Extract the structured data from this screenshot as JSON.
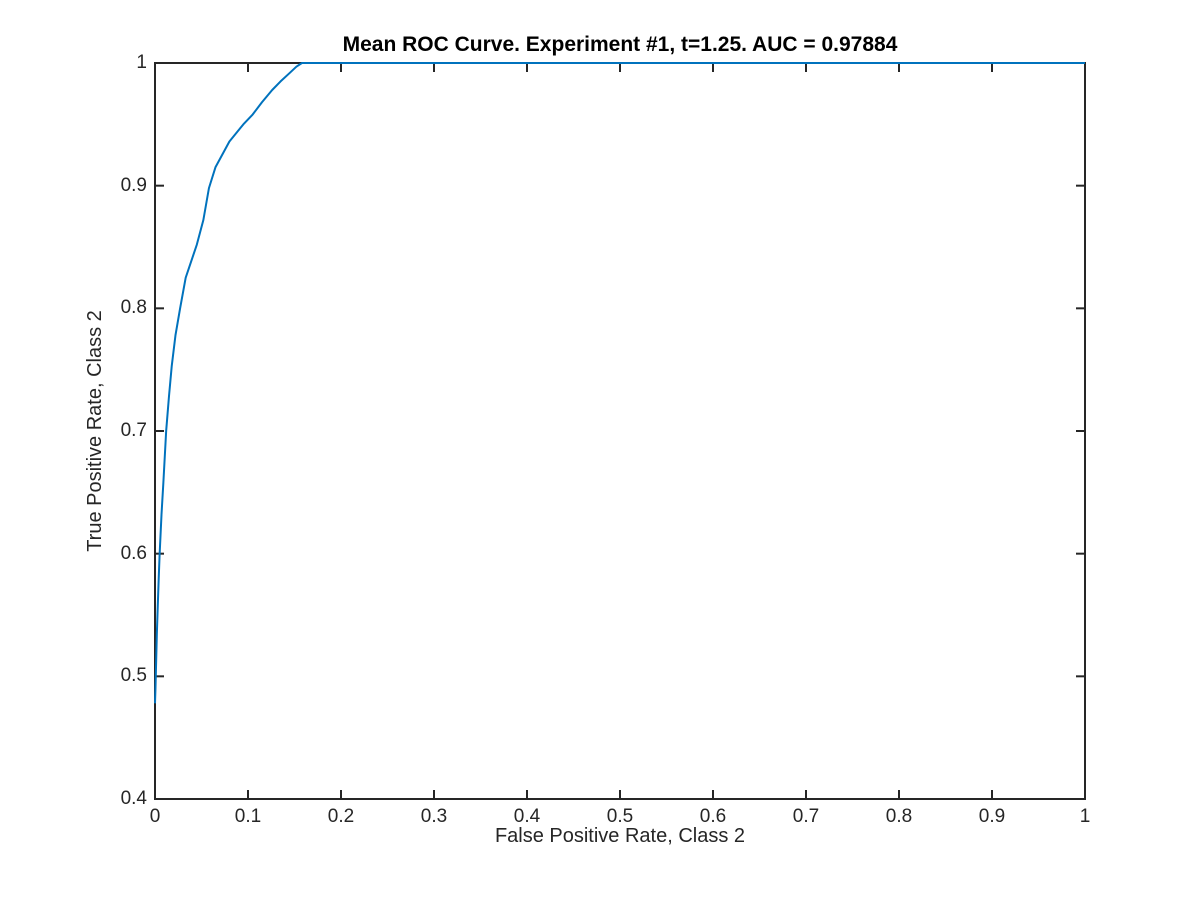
{
  "figure": {
    "background": "#ffffff"
  },
  "style": {
    "axis_color": "#262626",
    "tick_label_color": "#262626",
    "title_color": "#000000"
  },
  "chart_data": {
    "type": "line",
    "title": "Mean ROC Curve. Experiment #1, t=1.25. AUC = 0.97884",
    "xlabel": "False Positive Rate, Class 2",
    "ylabel": "True Positive Rate, Class 2",
    "xlim": [
      0,
      1
    ],
    "ylim": [
      0.4,
      1
    ],
    "x_ticks": [
      0,
      0.1,
      0.2,
      0.3,
      0.4,
      0.5,
      0.6,
      0.7,
      0.8,
      0.9,
      1
    ],
    "x_tick_labels": [
      "0",
      "0.1",
      "0.2",
      "0.3",
      "0.4",
      "0.5",
      "0.6",
      "0.7",
      "0.8",
      "0.9",
      "1"
    ],
    "y_ticks": [
      0.4,
      0.5,
      0.6,
      0.7,
      0.8,
      0.9,
      1
    ],
    "y_tick_labels": [
      "0.4",
      "0.5",
      "0.6",
      "0.7",
      "0.8",
      "0.9",
      "1"
    ],
    "grid": false,
    "legend": null,
    "experiment": 1,
    "t": 1.25,
    "auc": 0.97884,
    "series": [
      {
        "name": "Mean ROC",
        "color": "#0072BD",
        "line_width": 2,
        "points": [
          [
            0.0,
            0.478
          ],
          [
            0.0005,
            0.49
          ],
          [
            0.001,
            0.505
          ],
          [
            0.002,
            0.535
          ],
          [
            0.003,
            0.558
          ],
          [
            0.004,
            0.58
          ],
          [
            0.005,
            0.6
          ],
          [
            0.007,
            0.632
          ],
          [
            0.009,
            0.658
          ],
          [
            0.012,
            0.7
          ],
          [
            0.015,
            0.728
          ],
          [
            0.018,
            0.753
          ],
          [
            0.022,
            0.778
          ],
          [
            0.027,
            0.8
          ],
          [
            0.033,
            0.825
          ],
          [
            0.045,
            0.852
          ],
          [
            0.052,
            0.872
          ],
          [
            0.058,
            0.898
          ],
          [
            0.065,
            0.915
          ],
          [
            0.08,
            0.936
          ],
          [
            0.095,
            0.95
          ],
          [
            0.105,
            0.958
          ],
          [
            0.115,
            0.968
          ],
          [
            0.126,
            0.978
          ],
          [
            0.135,
            0.985
          ],
          [
            0.145,
            0.992
          ],
          [
            0.152,
            0.997
          ],
          [
            0.158,
            1.0
          ],
          [
            1.0,
            1.0
          ]
        ]
      }
    ]
  }
}
